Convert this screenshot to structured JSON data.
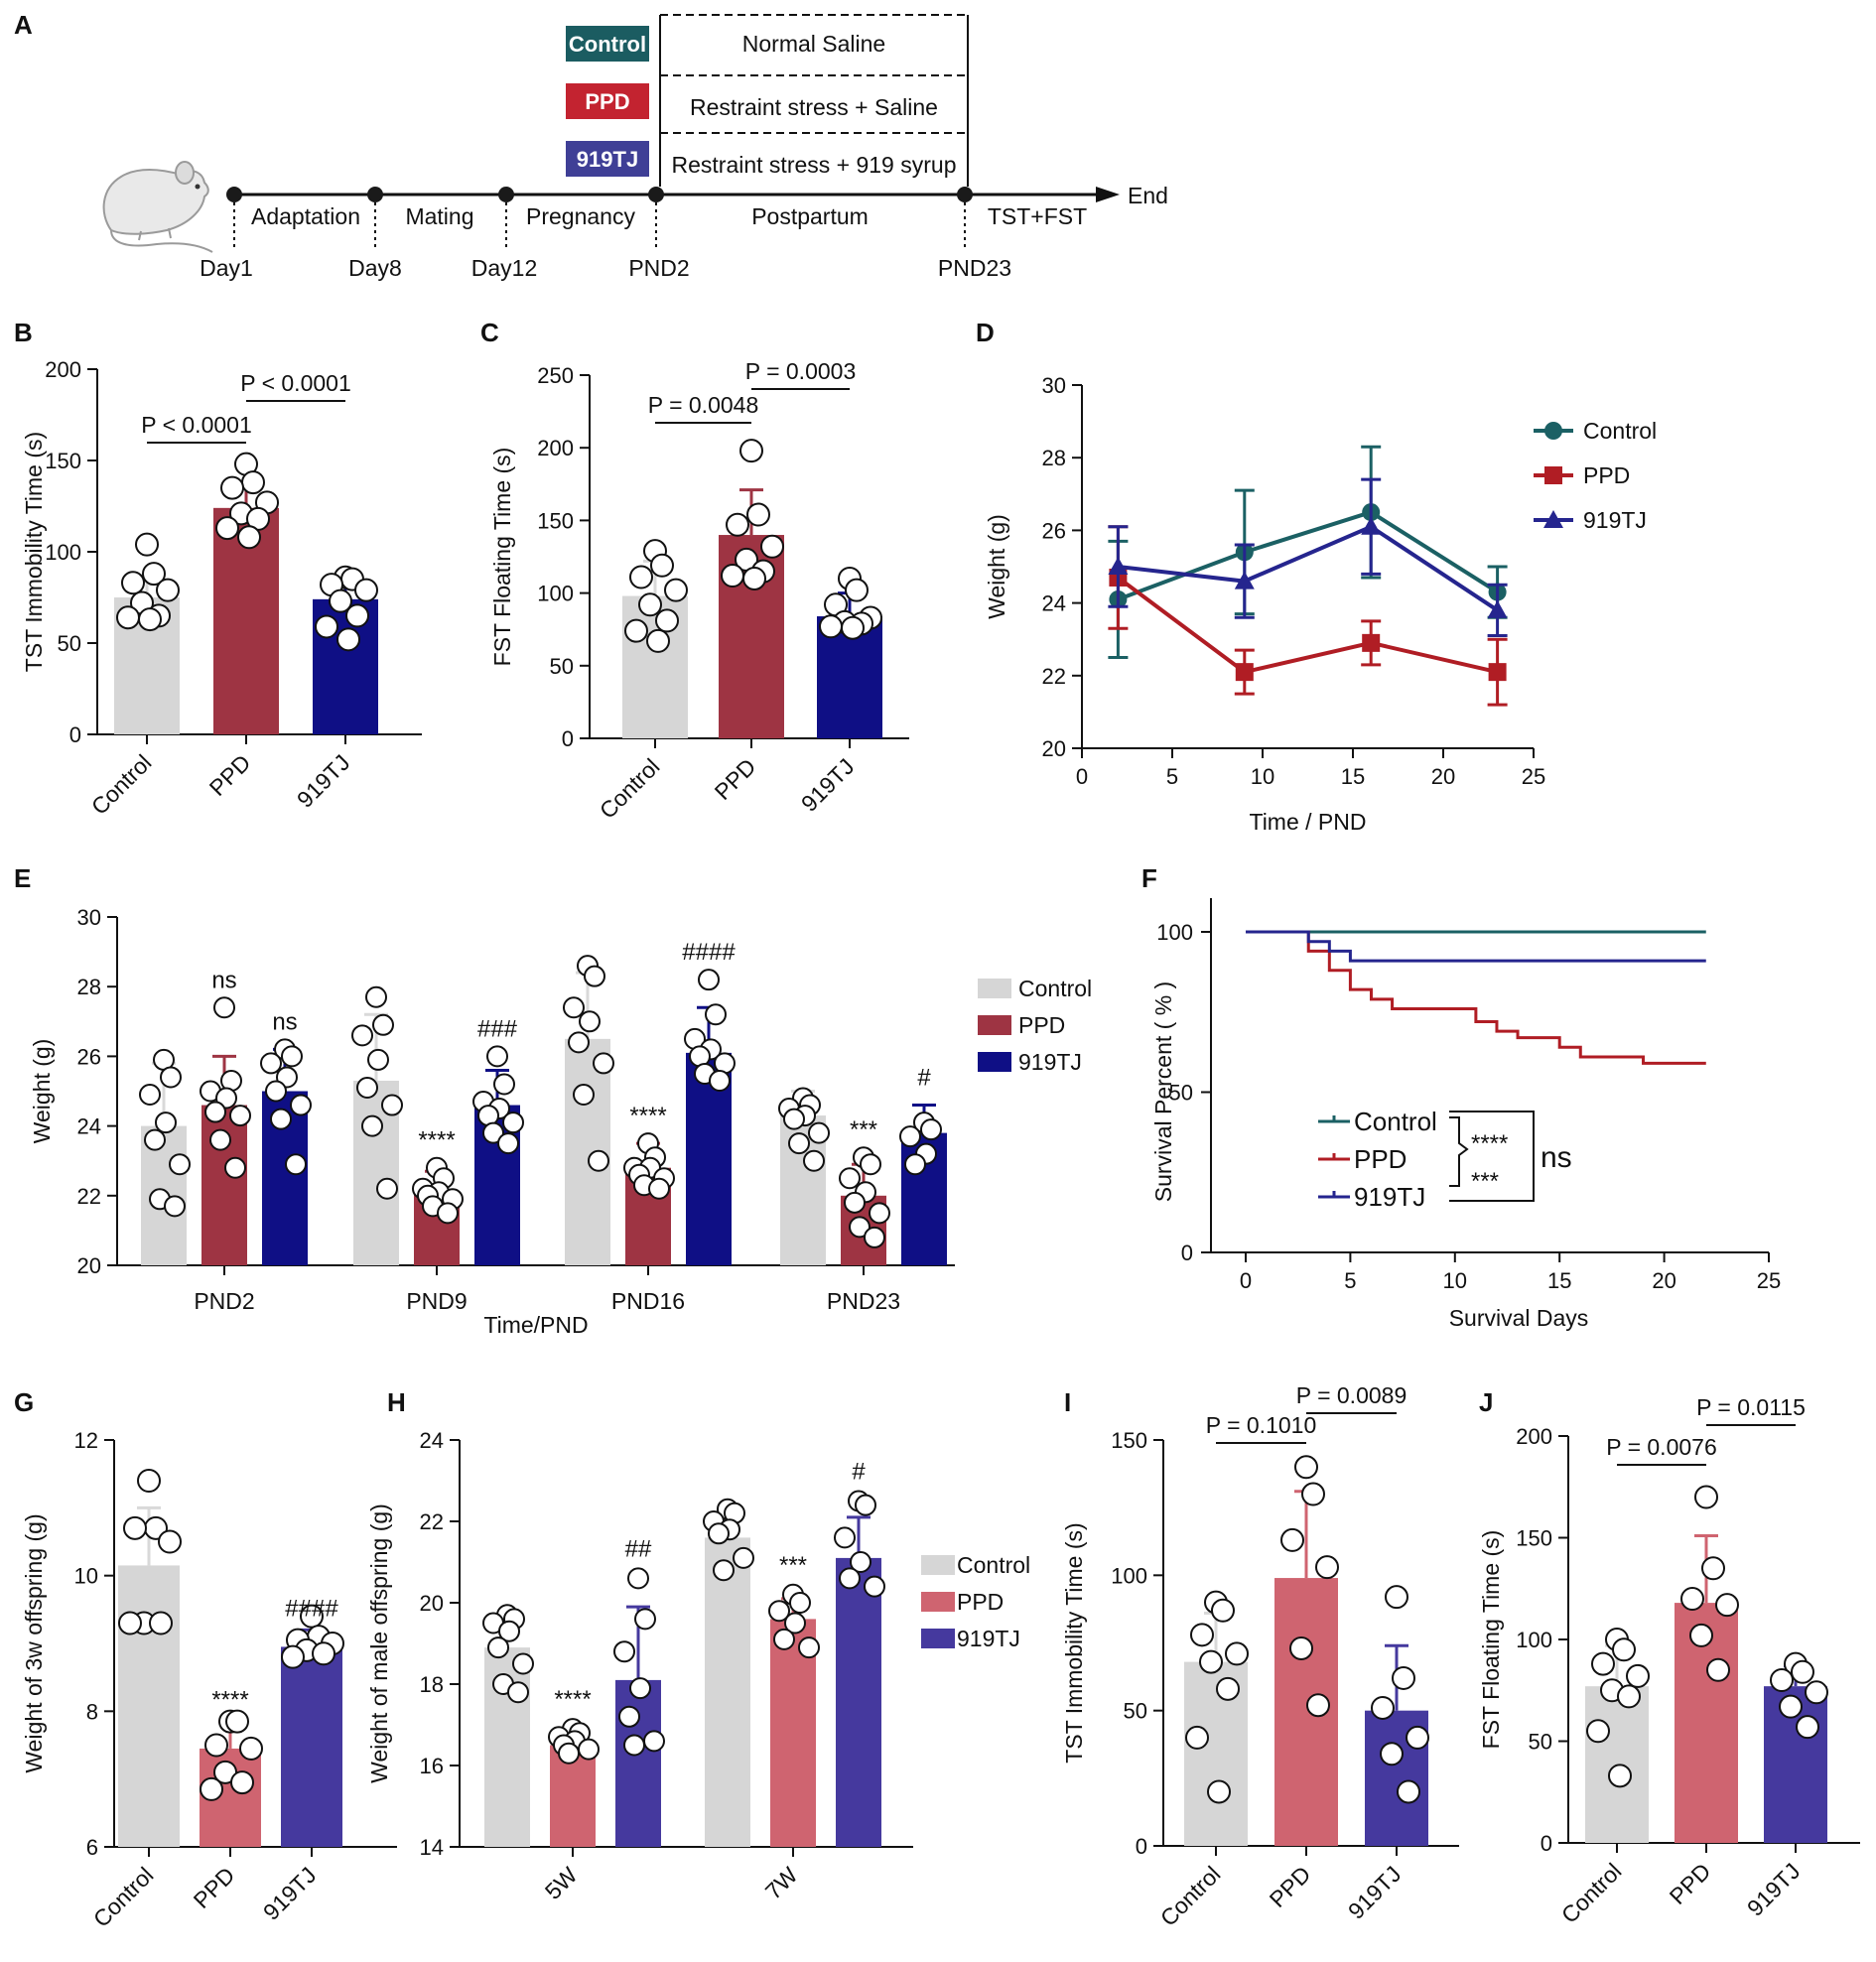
{
  "colors": {
    "control": "#d6d6d6",
    "ppd_top": "#9e3443",
    "tj_top": "#0f0f85",
    "ppd_bottom": "#cf6470",
    "tj_bottom": "#45399e",
    "line_control": "#1b6064",
    "line_ppd": "#b01d24",
    "line_tj": "#25258e",
    "badge_control": "#1b5c61",
    "badge_ppd": "#c32330",
    "badge_tj": "#3f3f96"
  },
  "panel_a": {
    "letter": "A",
    "groups": [
      {
        "badge": "Control",
        "treatment": "Normal Saline"
      },
      {
        "badge": "PPD",
        "treatment": "Restraint stress + Saline"
      },
      {
        "badge": "919TJ",
        "treatment": "Restraint stress + 919 syrup"
      }
    ],
    "phases": [
      "Adaptation",
      "Mating",
      "Pregnancy",
      "Postpartum",
      "TST+FST"
    ],
    "days": [
      "Day1",
      "Day8",
      "Day12",
      "PND2",
      "PND23"
    ],
    "end_label": "End",
    "mouse_icon": "mouse-icon"
  },
  "panel_b": {
    "letter": "B",
    "chart_data": {
      "type": "bar",
      "ylabel": "TST Immobility Time (s)",
      "ylim": [
        0,
        200
      ],
      "yticks": [
        "0",
        "50",
        "100",
        "150",
        "200"
      ],
      "categories": [
        "Control",
        "PPD",
        "919TJ"
      ],
      "values": [
        75,
        124,
        74
      ],
      "sd": [
        10,
        14,
        13
      ],
      "points": [
        [
          104,
          88,
          83,
          79,
          72,
          65,
          64,
          63
        ],
        [
          148,
          138,
          135,
          127,
          121,
          118,
          113,
          108
        ],
        [
          86,
          85,
          82,
          79,
          73,
          65,
          59,
          52
        ]
      ],
      "comparisons": [
        "P < 0.0001",
        "P < 0.0001"
      ]
    }
  },
  "panel_c": {
    "letter": "C",
    "chart_data": {
      "type": "bar",
      "ylabel": "FST Floating Time (s)",
      "ylim": [
        0,
        250
      ],
      "yticks": [
        "0",
        "50",
        "100",
        "150",
        "200",
        "250"
      ],
      "categories": [
        "Control",
        "PPD",
        "919TJ"
      ],
      "values": [
        98,
        140,
        84
      ],
      "sd": [
        24,
        31,
        16
      ],
      "points": [
        [
          129,
          119,
          111,
          102,
          92,
          81,
          74,
          67
        ],
        [
          198,
          154,
          147,
          132,
          123,
          115,
          112,
          110
        ],
        [
          110,
          102,
          92,
          83,
          80,
          79,
          77,
          76
        ]
      ],
      "comparisons": [
        "P = 0.0048",
        "P = 0.0003"
      ]
    }
  },
  "panel_d": {
    "letter": "D",
    "chart_data": {
      "type": "line",
      "xlabel": "Time / PND",
      "ylabel": "Weight (g)",
      "xlim": [
        0,
        25
      ],
      "ylim": [
        20,
        30
      ],
      "xticks": [
        "0",
        "5",
        "10",
        "15",
        "20",
        "25"
      ],
      "yticks": [
        "20",
        "22",
        "24",
        "26",
        "28",
        "30"
      ],
      "x": [
        2,
        9,
        16,
        23
      ],
      "series": [
        {
          "name": "Control",
          "values": [
            24.1,
            25.4,
            26.5,
            24.3
          ],
          "sd": [
            1.6,
            1.7,
            1.8,
            0.7
          ]
        },
        {
          "name": "PPD",
          "values": [
            24.7,
            22.1,
            22.9,
            22.1
          ],
          "sd": [
            1.4,
            0.6,
            0.6,
            0.9
          ]
        },
        {
          "name": "919TJ",
          "values": [
            25.0,
            24.6,
            26.1,
            23.8
          ],
          "sd": [
            1.1,
            1.0,
            1.3,
            0.7
          ]
        }
      ]
    }
  },
  "panel_e": {
    "letter": "E",
    "chart_data": {
      "type": "bar",
      "xlabel": "Time/PND",
      "ylabel": "Weight (g)",
      "ylim": [
        20,
        30
      ],
      "yticks": [
        "20",
        "22",
        "24",
        "26",
        "28",
        "30"
      ],
      "categories": [
        "PND2",
        "PND9",
        "PND16",
        "PND23"
      ],
      "series": [
        {
          "name": "Control",
          "values": [
            24.0,
            25.3,
            26.5,
            24.3
          ],
          "sd": [
            1.8,
            1.9,
            1.9,
            0.7
          ],
          "points": [
            [
              25.9,
              25.4,
              24.9,
              24.1,
              23.6,
              22.9,
              21.9,
              21.7
            ],
            [
              27.7,
              26.9,
              26.6,
              25.9,
              25.1,
              24.6,
              24.0,
              22.2
            ],
            [
              28.6,
              28.3,
              27.4,
              27.0,
              26.4,
              25.8,
              24.9,
              23.0
            ],
            [
              24.8,
              24.6,
              24.5,
              24.3,
              24.2,
              23.8,
              23.5,
              23.0
            ]
          ]
        },
        {
          "name": "PPD",
          "values": [
            24.6,
            22.1,
            22.8,
            22.0
          ],
          "sd": [
            1.4,
            0.6,
            0.7,
            0.9
          ],
          "points": [
            [
              27.4,
              25.3,
              25.0,
              24.8,
              24.4,
              24.3,
              23.6,
              22.8
            ],
            [
              22.8,
              22.5,
              22.2,
              22.1,
              22.0,
              21.9,
              21.7,
              21.5
            ],
            [
              23.5,
              23.1,
              22.8,
              22.8,
              22.6,
              22.5,
              22.3,
              22.2
            ],
            [
              23.1,
              22.9,
              22.5,
              22.1,
              21.8,
              21.5,
              21.1,
              20.8
            ]
          ]
        },
        {
          "name": "919TJ",
          "values": [
            25.0,
            24.6,
            26.1,
            23.8
          ],
          "sd": [
            1.2,
            1.0,
            1.3,
            0.8
          ],
          "points": [
            [
              26.2,
              26.0,
              25.8,
              25.4,
              25.0,
              24.6,
              24.2,
              22.9
            ],
            [
              26.0,
              25.2,
              24.7,
              24.5,
              24.3,
              24.1,
              23.8,
              23.5
            ],
            [
              28.2,
              27.2,
              26.5,
              26.2,
              26.0,
              25.8,
              25.5,
              25.3
            ],
            [
              24.1,
              23.9,
              23.7,
              23.2,
              22.9
            ]
          ]
        }
      ],
      "annotations": [
        {
          "series": "PPD",
          "category": "PND2",
          "text": "ns"
        },
        {
          "series": "919TJ",
          "category": "PND2",
          "text": "ns"
        },
        {
          "series": "PPD",
          "category": "PND9",
          "text": "****"
        },
        {
          "series": "919TJ",
          "category": "PND9",
          "text": "###"
        },
        {
          "series": "PPD",
          "category": "PND16",
          "text": "****"
        },
        {
          "series": "919TJ",
          "category": "PND16",
          "text": "####"
        },
        {
          "series": "PPD",
          "category": "PND23",
          "text": "***"
        },
        {
          "series": "919TJ",
          "category": "PND23",
          "text": "#"
        }
      ]
    }
  },
  "panel_f": {
    "letter": "F",
    "chart_data": {
      "type": "line",
      "xlabel": "Survival Days",
      "ylabel": "Survival Percent ( % )",
      "xlim": [
        0,
        25
      ],
      "ylim": [
        0,
        100
      ],
      "xticks": [
        "0",
        "5",
        "10",
        "15",
        "20",
        "25"
      ],
      "yticks": [
        "0",
        "50",
        "100"
      ],
      "series": [
        {
          "name": "Control",
          "steps": [
            [
              0,
              100
            ],
            [
              22,
              100
            ]
          ]
        },
        {
          "name": "PPD",
          "steps": [
            [
              0,
              100
            ],
            [
              3,
              100
            ],
            [
              3,
              94
            ],
            [
              4,
              94
            ],
            [
              4,
              88
            ],
            [
              5,
              88
            ],
            [
              5,
              82
            ],
            [
              6,
              82
            ],
            [
              6,
              79
            ],
            [
              7,
              79
            ],
            [
              7,
              76
            ],
            [
              11,
              76
            ],
            [
              11,
              72
            ],
            [
              12,
              72
            ],
            [
              12,
              69
            ],
            [
              13,
              69
            ],
            [
              13,
              67
            ],
            [
              15,
              67
            ],
            [
              15,
              64
            ],
            [
              16,
              64
            ],
            [
              16,
              61
            ],
            [
              19,
              61
            ],
            [
              19,
              59
            ],
            [
              22,
              59
            ]
          ]
        },
        {
          "name": "919TJ",
          "steps": [
            [
              0,
              100
            ],
            [
              3,
              100
            ],
            [
              3,
              97
            ],
            [
              4,
              97
            ],
            [
              4,
              94
            ],
            [
              5,
              94
            ],
            [
              5,
              91
            ],
            [
              22,
              91
            ]
          ]
        }
      ],
      "annotations": [
        "****",
        "***",
        "ns"
      ]
    }
  },
  "panel_g": {
    "letter": "G",
    "chart_data": {
      "type": "bar",
      "ylabel": "Weight of 3w offspring (g)",
      "ylim": [
        6,
        12
      ],
      "yticks": [
        "6",
        "8",
        "10",
        "12"
      ],
      "categories": [
        "Control",
        "PPD",
        "919TJ"
      ],
      "values": [
        10.15,
        7.45,
        8.95
      ],
      "sd": [
        0.85,
        0.4,
        0.25
      ],
      "points": [
        [
          11.4,
          10.7,
          10.7,
          10.5,
          9.3,
          9.3,
          9.3
        ],
        [
          7.85,
          7.85,
          7.5,
          7.45,
          7.1,
          6.95,
          6.85
        ],
        [
          9.4,
          9.1,
          9.05,
          9.0,
          8.9,
          8.85,
          8.8
        ]
      ],
      "annotations": [
        "****",
        "####"
      ]
    }
  },
  "panel_h": {
    "letter": "H",
    "chart_data": {
      "type": "bar",
      "ylabel": "Weight of male  offspring (g)",
      "ylim": [
        14,
        24
      ],
      "yticks": [
        "14",
        "16",
        "18",
        "20",
        "22",
        "24"
      ],
      "categories": [
        "5W",
        "7W"
      ],
      "series": [
        {
          "name": "Control",
          "values": [
            18.9,
            21.6
          ],
          "sd": [
            0.7,
            0.5
          ],
          "points": [
            [
              19.7,
              19.6,
              19.5,
              19.3,
              18.9,
              18.5,
              18.0,
              17.8
            ],
            [
              22.3,
              22.2,
              22.0,
              21.8,
              21.7,
              21.1,
              20.8
            ]
          ]
        },
        {
          "name": "PPD",
          "values": [
            16.5,
            19.6
          ],
          "sd": [
            0.3,
            0.5
          ],
          "points": [
            [
              16.9,
              16.8,
              16.7,
              16.6,
              16.5,
              16.4,
              16.3
            ],
            [
              20.2,
              20.0,
              19.8,
              19.5,
              19.1,
              18.9
            ]
          ]
        },
        {
          "name": "919TJ",
          "values": [
            18.1,
            21.1
          ],
          "sd": [
            1.8,
            1.0
          ],
          "points": [
            [
              20.6,
              19.6,
              18.8,
              17.9,
              17.2,
              16.6,
              16.5
            ],
            [
              22.5,
              22.4,
              21.6,
              21.0,
              20.6,
              20.4
            ]
          ]
        }
      ],
      "annotations": [
        {
          "series": "PPD",
          "category": "5W",
          "text": "****"
        },
        {
          "series": "919TJ",
          "category": "5W",
          "text": "##"
        },
        {
          "series": "PPD",
          "category": "7W",
          "text": "***"
        },
        {
          "series": "919TJ",
          "category": "7W",
          "text": "#"
        }
      ]
    }
  },
  "panel_i": {
    "letter": "I",
    "chart_data": {
      "type": "bar",
      "ylabel": "TST Immobility Time (s)",
      "ylim": [
        0,
        150
      ],
      "yticks": [
        "0",
        "50",
        "100",
        "150"
      ],
      "categories": [
        "Control",
        "PPD",
        "919TJ"
      ],
      "values": [
        68,
        99,
        50
      ],
      "sd": [
        18,
        32,
        24
      ],
      "points": [
        [
          90,
          87,
          78,
          71,
          68,
          58,
          40,
          20
        ],
        [
          140,
          130,
          113,
          103,
          73,
          52
        ],
        [
          92,
          62,
          51,
          40,
          34,
          20
        ]
      ],
      "comparisons": [
        "P = 0.1010",
        "P = 0.0089"
      ]
    }
  },
  "panel_j": {
    "letter": "J",
    "chart_data": {
      "type": "bar",
      "ylabel": "FST Floating Time (s)",
      "ylim": [
        0,
        200
      ],
      "yticks": [
        "0",
        "50",
        "100",
        "150",
        "200"
      ],
      "categories": [
        "Control",
        "PPD",
        "919TJ"
      ],
      "values": [
        77,
        118,
        77
      ],
      "sd": [
        20,
        33,
        10
      ],
      "points": [
        [
          100,
          95,
          88,
          82,
          75,
          72,
          55,
          33
        ],
        [
          170,
          135,
          120,
          117,
          102,
          85
        ],
        [
          88,
          84,
          80,
          74,
          67,
          57
        ]
      ],
      "comparisons": [
        "P = 0.0076",
        "P = 0.0115"
      ]
    }
  }
}
